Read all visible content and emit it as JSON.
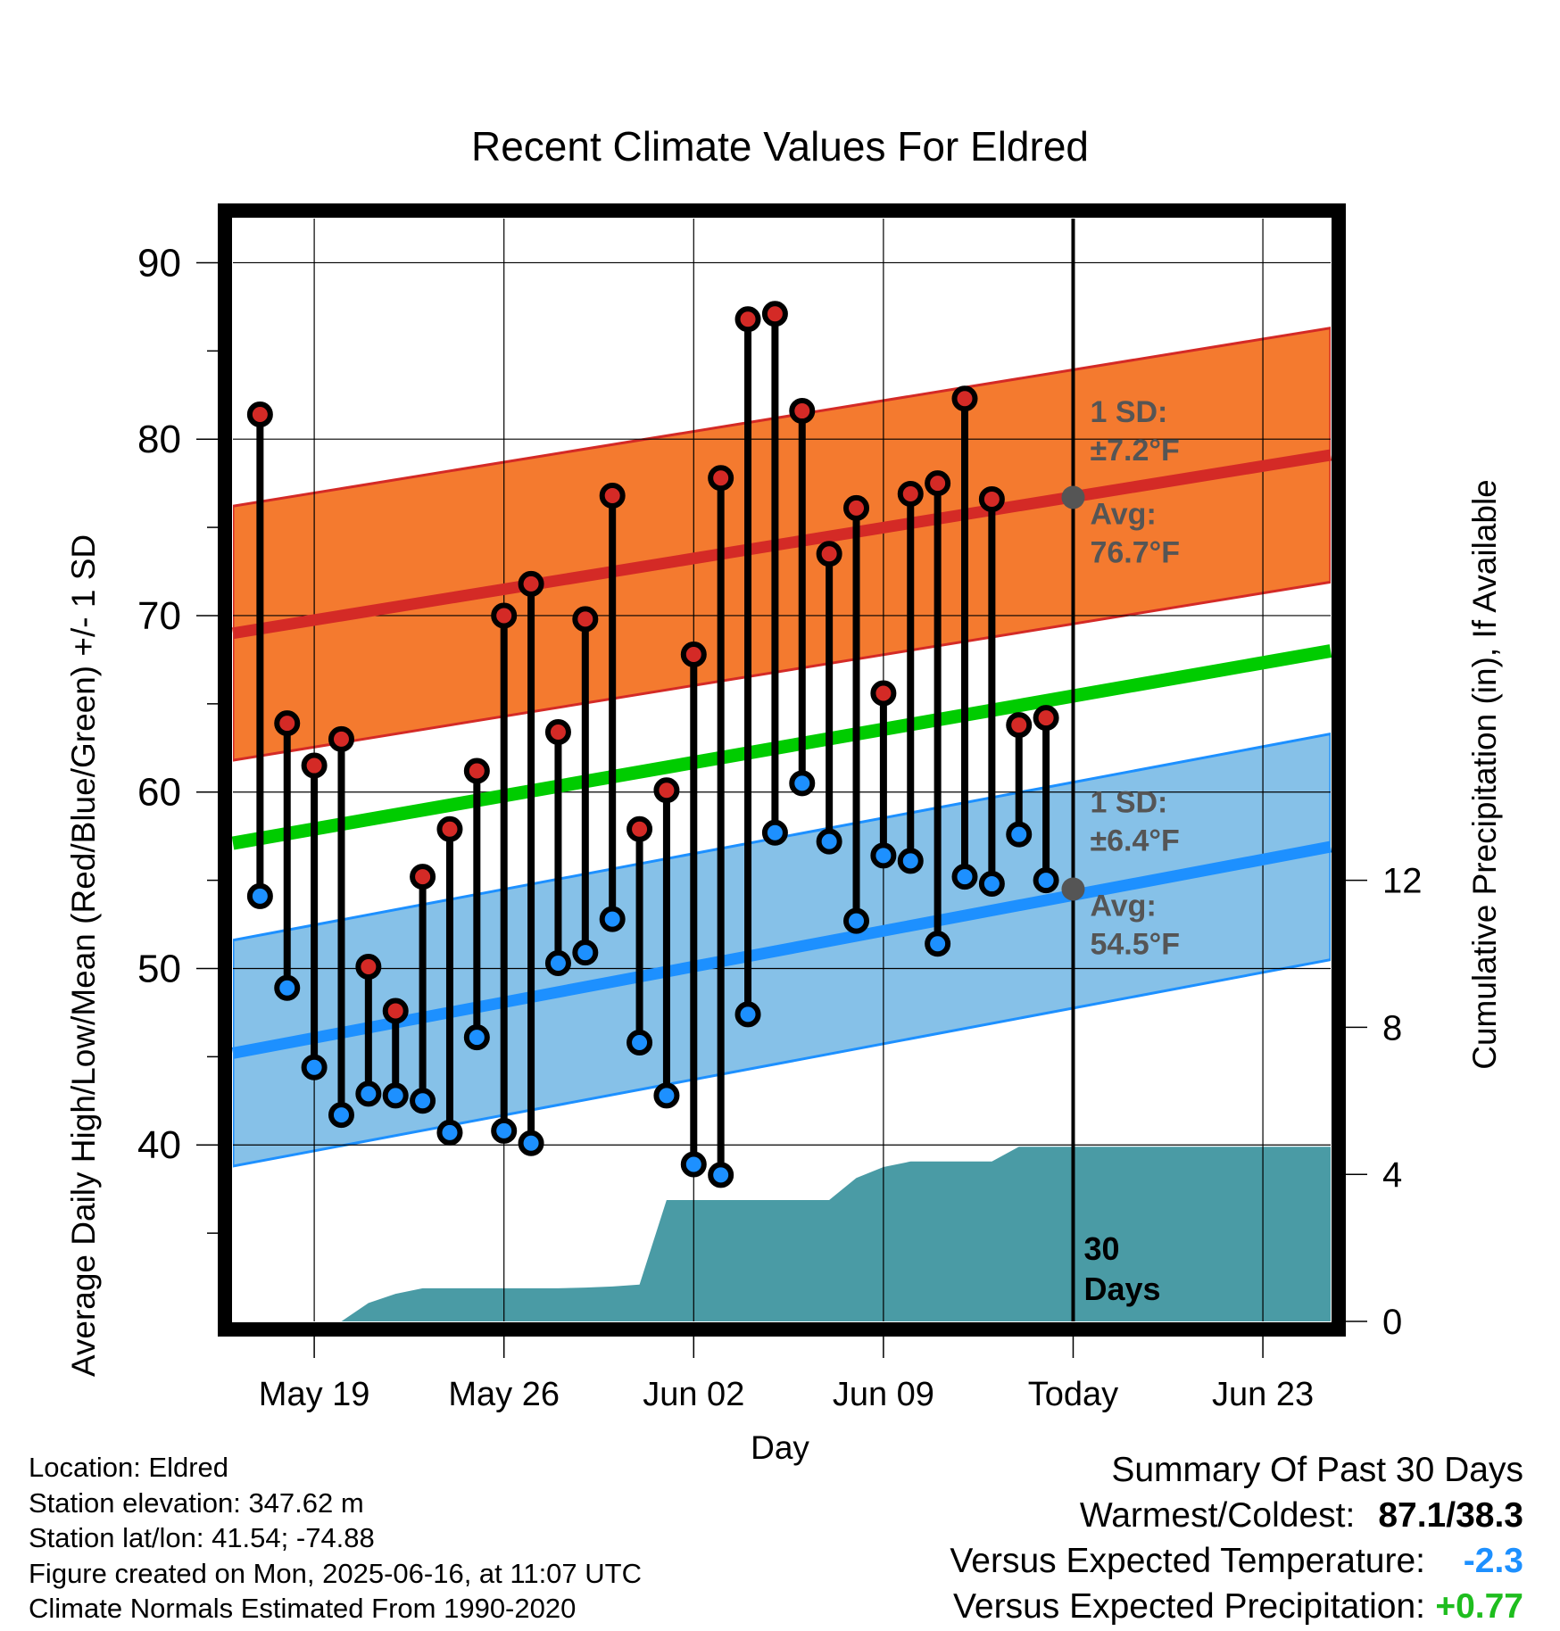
{
  "chart_data": {
    "type": "line",
    "title": "Recent Climate Values For Eldred",
    "xlabel": "Day",
    "ylabel": "Average Daily High/Low/Mean (Red/Blue/Green) +/- 1 SD",
    "y2label": "Cumulative Precipitation (in), If Available",
    "x_tick_labels": [
      "May 19",
      "May 26",
      "Jun 02",
      "Jun 09",
      "Today",
      "Jun 23"
    ],
    "ylim": [
      30,
      92.5
    ],
    "yticks": [
      40,
      50,
      60,
      70,
      80,
      90
    ],
    "y2lim": [
      0,
      30
    ],
    "y2ticks": [
      0,
      4,
      8,
      12
    ],
    "x_range_days_relative_to_today": [
      -31,
      9.5
    ],
    "grid": true,
    "today_marker_label": "30\nDays",
    "normals": {
      "high": {
        "start": 69.0,
        "end": 79.1,
        "sd_label": "1 SD:",
        "sd_value": "±7.2°F",
        "avg_label": "Avg:",
        "avg_value": "76.7°F",
        "today_avg": 76.7,
        "sd": 7.2,
        "color": "#d42a26",
        "band_color": "#f47a2f"
      },
      "low": {
        "start": 45.2,
        "end": 56.9,
        "sd_label": "1 SD:",
        "sd_value": "±6.4°F",
        "avg_label": "Avg:",
        "avg_value": "54.5°F",
        "today_avg": 54.5,
        "sd": 6.4,
        "color": "#1d90ff",
        "band_color": "#86c1e8"
      },
      "mean": {
        "start": 57.1,
        "end": 68.0,
        "color": "#00cc00"
      }
    },
    "series": [
      {
        "name": "High",
        "color": "#d42a26",
        "values": [
          81.4,
          63.9,
          61.5,
          63.0,
          50.1,
          47.6,
          55.2,
          57.9,
          61.2,
          70.0,
          71.8,
          63.4,
          69.8,
          76.8,
          57.9,
          60.1,
          67.8,
          77.8,
          86.8,
          87.1,
          81.6,
          73.5,
          76.1,
          65.6,
          76.9,
          77.5,
          82.3,
          76.6,
          63.8,
          64.2
        ]
      },
      {
        "name": "Low",
        "color": "#1d90ff",
        "values": [
          54.1,
          48.9,
          44.4,
          41.7,
          42.9,
          42.8,
          42.5,
          40.7,
          46.1,
          40.8,
          40.1,
          50.3,
          50.9,
          52.8,
          45.8,
          42.8,
          38.9,
          38.3,
          47.4,
          57.7,
          60.5,
          57.2,
          52.7,
          56.4,
          56.1,
          51.4,
          55.2,
          54.8,
          57.6,
          55.0
        ]
      }
    ],
    "precipitation": {
      "color": "#4a9ba5",
      "x_days_relative_to_today": [
        -27,
        -26,
        -25,
        -24,
        -23,
        -22,
        -21,
        -20,
        -19,
        -18,
        -17,
        -16,
        -15,
        -14,
        -13,
        -12,
        -11,
        -10,
        -9,
        -8,
        -7,
        -6,
        -5,
        -4,
        -3,
        -2,
        -1,
        0,
        9.5
      ],
      "cumulative_in": [
        0.0,
        0.5,
        0.75,
        0.9,
        0.9,
        0.9,
        0.9,
        0.9,
        0.9,
        0.92,
        0.95,
        1.0,
        3.3,
        3.3,
        3.3,
        3.3,
        3.3,
        3.3,
        3.3,
        3.9,
        4.2,
        4.35,
        4.35,
        4.35,
        4.35,
        4.75,
        4.75,
        4.75,
        4.75
      ]
    }
  },
  "info": {
    "location": "Location: Eldred",
    "elevation": "Station elevation: 347.62 m",
    "latlon": "Station lat/lon: 41.54; -74.88",
    "created": "Figure created on Mon, 2025-06-16, at 11:07 UTC",
    "normals": "Climate Normals Estimated From 1990-2020"
  },
  "summary": {
    "title": "Summary Of Past 30 Days",
    "warmest_coldest_label": "Warmest/Coldest:",
    "warmest_coldest_value": "87.1/38.3",
    "temp_label": "Versus Expected Temperature:",
    "temp_value": "-2.3",
    "temp_color": "#1d90ff",
    "precip_label": "Versus Expected Precipitation:",
    "precip_value": "+0.77",
    "precip_color": "#1ebd1e"
  }
}
